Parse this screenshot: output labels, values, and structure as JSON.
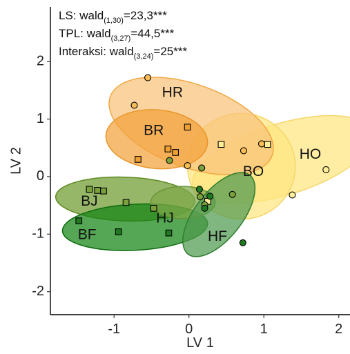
{
  "chart_data": {
    "type": "scatter",
    "xlabel": "LV 1",
    "ylabel": "LV 2",
    "xlim": [
      -1.85,
      2.15
    ],
    "ylim": [
      -2.4,
      2.95
    ],
    "xticks": [
      -1,
      0,
      1,
      2
    ],
    "yticks": [
      -2,
      -1,
      0,
      1,
      2
    ],
    "xtick_labels": [
      "-1",
      "0",
      "1",
      "2"
    ],
    "ytick_labels": [
      "-2",
      "-1",
      "0",
      "1",
      "2"
    ],
    "grid": false,
    "stats": [
      {
        "prefix": "LS: wald",
        "sub": "(1,30)",
        "suffix": "=23,3***"
      },
      {
        "prefix": "TPL: wald",
        "sub": "(3,27)",
        "suffix": "=44,5***"
      },
      {
        "prefix": "Interaksi: wald",
        "sub": "(3,24)",
        "suffix": "=25***"
      }
    ],
    "groups": [
      {
        "label": "HO",
        "shape": "circle",
        "color": "#FFEE99",
        "ellipse": {
          "cx": 1.25,
          "cy": 0.3,
          "rx": 1.25,
          "ry": 0.62,
          "angle": -17,
          "fill": "#FFE680",
          "stroke": "#F5D66B"
        },
        "label_pos": [
          1.62,
          0.38
        ],
        "points": [
          [
            1.83,
            0.12
          ],
          [
            1.38,
            -0.32
          ]
        ]
      },
      {
        "label": "BO",
        "shape": "square",
        "color": "#FFEE99",
        "ellipse": {
          "cx": 0.7,
          "cy": 0.18,
          "rx": 0.72,
          "ry": 0.92,
          "angle": 12,
          "fill": "#FFE680",
          "stroke": "#F5D66B"
        },
        "label_pos": [
          0.86,
          0.08
        ],
        "points": [
          [
            0.43,
            0.56
          ],
          [
            1.05,
            0.56
          ],
          [
            0.25,
            -0.43
          ]
        ]
      },
      {
        "label": "HR",
        "shape": "circle",
        "color": "#F8BD55",
        "ellipse": {
          "cx": 0.03,
          "cy": 0.88,
          "rx": 1.15,
          "ry": 0.72,
          "angle": 20,
          "fill": "#F9C27A",
          "stroke": "#F1A845"
        },
        "label_pos": [
          -0.22,
          1.45
        ],
        "points": [
          [
            -0.55,
            1.72
          ],
          [
            -0.73,
            1.24
          ],
          [
            0.73,
            0.45
          ],
          [
            0.97,
            0.57
          ],
          [
            -0.02,
            0.19
          ]
        ]
      },
      {
        "label": "BR",
        "shape": "square",
        "color": "#F0A030",
        "ellipse": {
          "cx": -0.43,
          "cy": 0.65,
          "rx": 0.68,
          "ry": 0.51,
          "angle": 5,
          "fill": "#F2A23C",
          "stroke": "#E89628"
        },
        "label_pos": [
          -0.47,
          0.79
        ],
        "points": [
          [
            -0.02,
            0.86
          ],
          [
            -0.28,
            0.48
          ],
          [
            -0.18,
            0.42
          ],
          [
            -0.68,
            0.3
          ]
        ]
      },
      {
        "label": "BJ",
        "shape": "square",
        "color": "#7BA13D",
        "ellipse": {
          "cx": -0.85,
          "cy": -0.39,
          "rx": 0.93,
          "ry": 0.38,
          "angle": 2,
          "fill": "#6E9A2E",
          "stroke": "#5E8A20"
        },
        "label_pos": [
          -1.33,
          -0.44
        ],
        "points": [
          [
            -1.33,
            -0.22
          ],
          [
            -1.22,
            -0.24
          ],
          [
            -1.14,
            -0.25
          ],
          [
            -0.84,
            -0.45
          ],
          [
            -0.47,
            -0.55
          ]
        ]
      },
      {
        "label": "BF",
        "shape": "square",
        "color": "#1F7A1F",
        "ellipse": {
          "cx": -0.72,
          "cy": -0.88,
          "rx": 0.97,
          "ry": 0.4,
          "angle": -3,
          "fill": "#138413",
          "stroke": "#0C6C0C"
        },
        "label_pos": [
          -1.36,
          -1.02
        ],
        "points": [
          [
            -1.47,
            -0.77
          ],
          [
            -0.94,
            -0.96
          ],
          [
            -0.27,
            -0.98
          ]
        ]
      },
      {
        "label": "HJ",
        "shape": "circle",
        "color": "#7BA13D",
        "ellipse": {
          "cx": -0.08,
          "cy": -0.45,
          "rx": 0.43,
          "ry": 0.28,
          "angle": 0,
          "fill": "#7FA84A",
          "stroke": "#6A9436"
        },
        "label_pos": [
          -0.32,
          -0.73
        ],
        "points": [
          [
            -0.26,
            0.28
          ],
          [
            0.17,
            0.15
          ],
          [
            0.15,
            -0.35
          ],
          [
            0.58,
            -0.31
          ],
          [
            0.21,
            -0.49
          ]
        ]
      },
      {
        "label": "HF",
        "shape": "circle",
        "color": "#1F7A1F",
        "ellipse": {
          "cx": 0.4,
          "cy": -0.66,
          "rx": 0.67,
          "ry": 0.41,
          "angle": -52,
          "fill": "#4F9A4F",
          "stroke": "#2E7D2E"
        },
        "label_pos": [
          0.38,
          -1.05
        ],
        "points": [
          [
            0.14,
            -0.22
          ],
          [
            0.28,
            -0.34
          ],
          [
            0.21,
            -0.55
          ],
          [
            0.72,
            -1.15
          ]
        ]
      }
    ]
  }
}
